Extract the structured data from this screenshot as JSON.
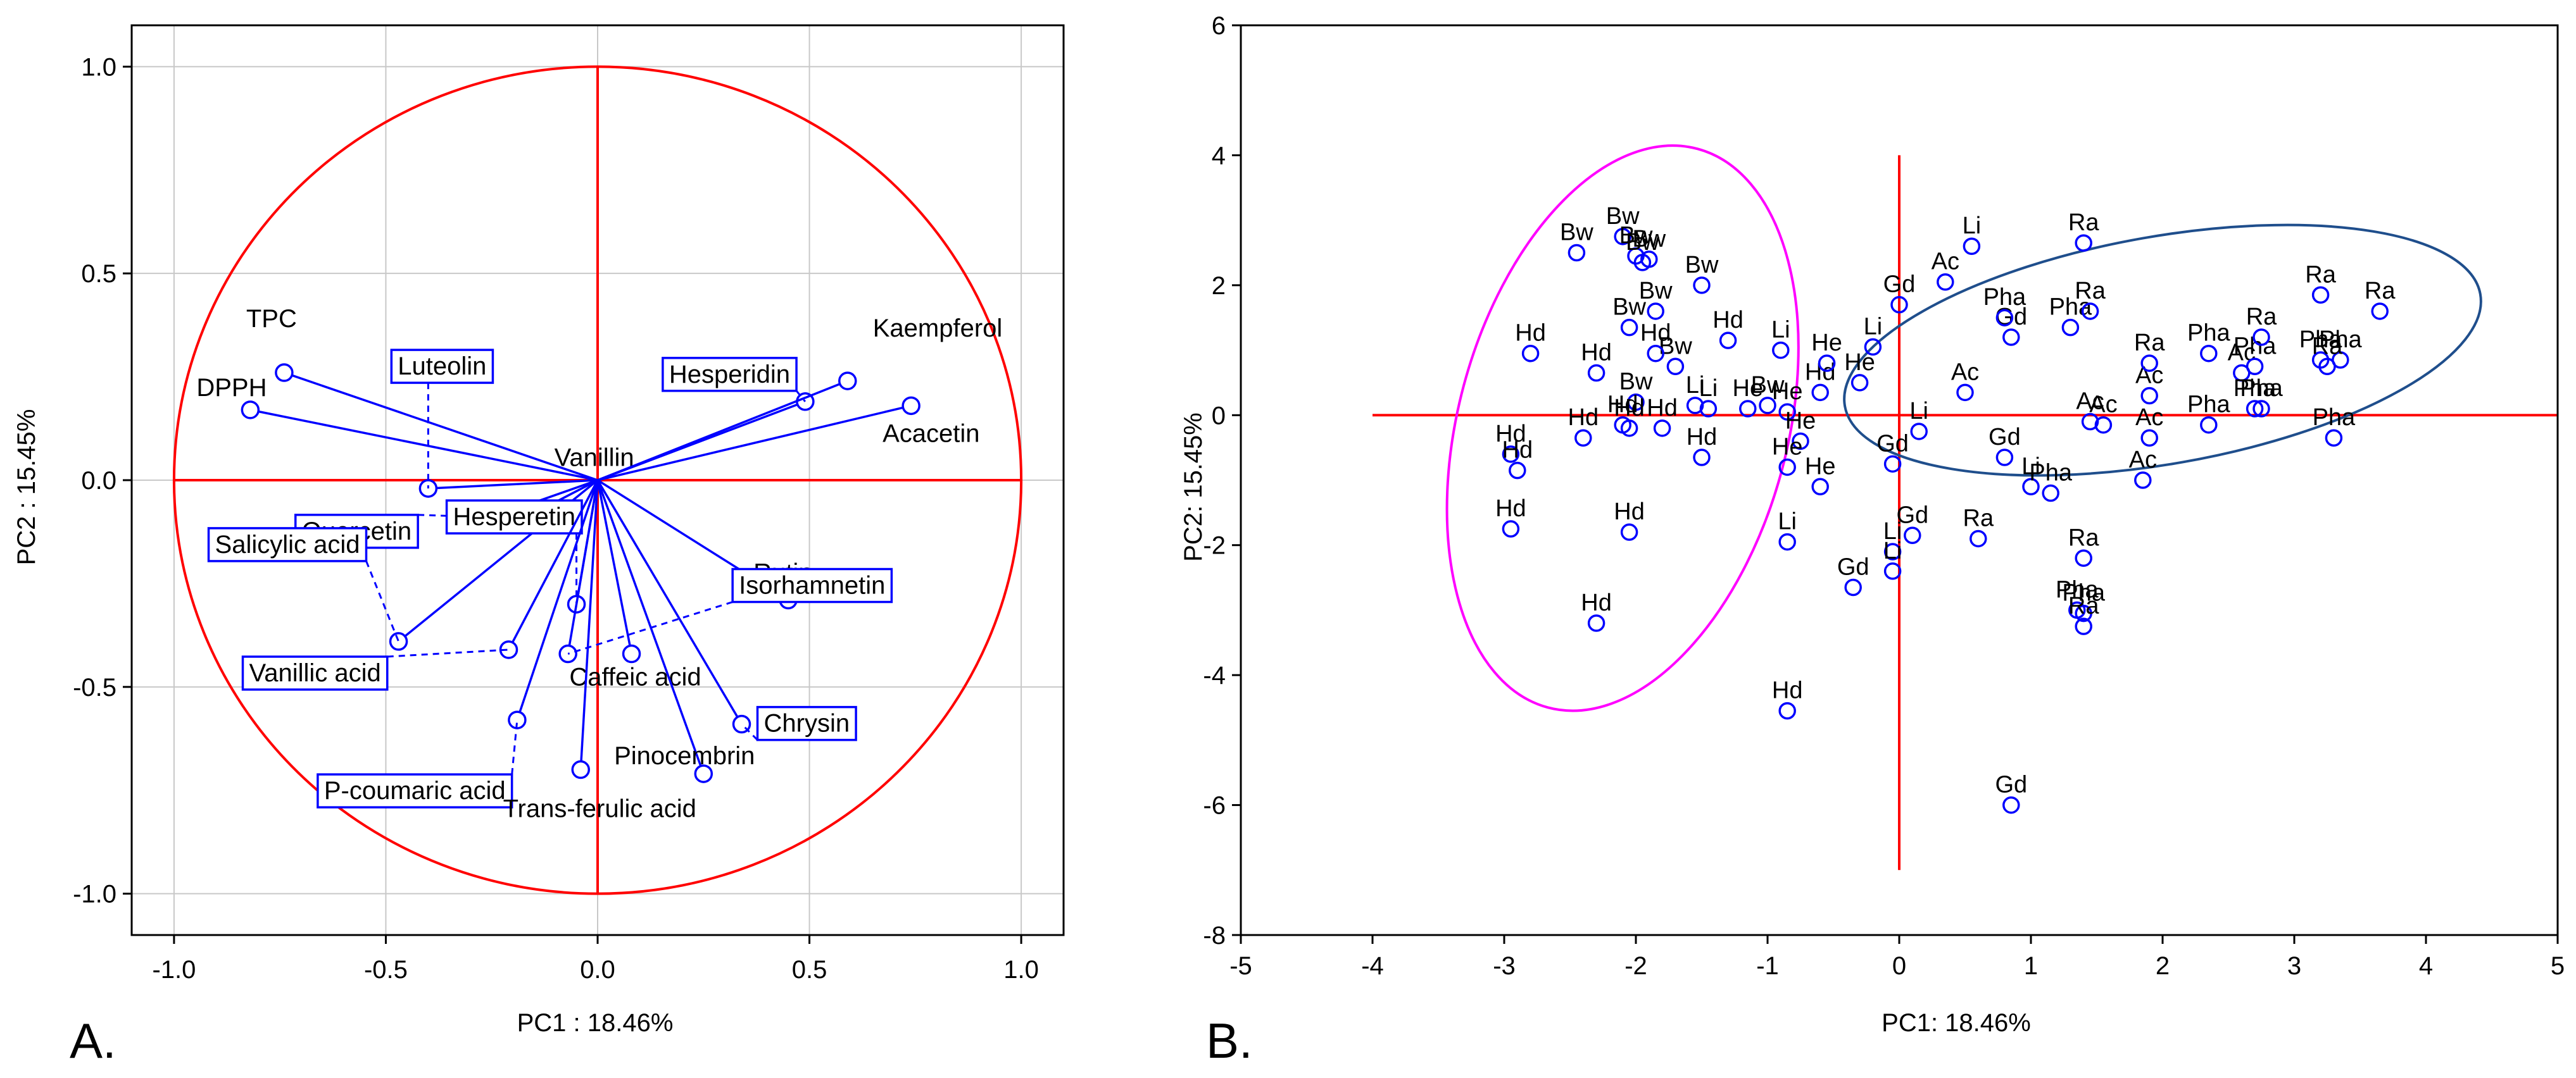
{
  "colors": {
    "axis": "#000000",
    "grid": "#c8c8c8",
    "red": "#ff0000",
    "blue": "#0000ff",
    "magenta": "#ff00ff",
    "navy": "#1f4e8c",
    "text": "#000000"
  },
  "chart_data": [
    {
      "type": "scatter",
      "panel_label": "A.",
      "xlabel": "PC1 : 18.46%",
      "ylabel": "PC2 : 15.45%",
      "xlim": [
        -1.1,
        1.1
      ],
      "ylim": [
        -1.1,
        1.1
      ],
      "xticks": [
        -1.0,
        -0.5,
        0.0,
        0.5,
        1.0
      ],
      "xtick_labels": [
        "-1.0",
        "-0.5",
        "0.0",
        "0.5",
        "1.0"
      ],
      "yticks": [
        -1.0,
        -0.5,
        0.0,
        0.5,
        1.0
      ],
      "ytick_labels": [
        "-1.0",
        "-0.5",
        "0.0",
        "0.5",
        "1.0"
      ],
      "grid": true,
      "circle_radius": 1.0,
      "loadings": [
        {
          "name": "TPC",
          "x": -0.74,
          "y": 0.26,
          "boxed": false
        },
        {
          "name": "DPPH",
          "x": -0.82,
          "y": 0.17,
          "boxed": false
        },
        {
          "name": "Luteolin",
          "x": -0.4,
          "y": -0.02,
          "boxed": true
        },
        {
          "name": "Vanillin",
          "x": -0.15,
          "y": -0.08,
          "boxed": false
        },
        {
          "name": "Quercetin",
          "x": -0.25,
          "y": -0.09,
          "boxed": true
        },
        {
          "name": "Salicylic acid",
          "x": -0.47,
          "y": -0.39,
          "boxed": true
        },
        {
          "name": "Hesperetin",
          "x": -0.05,
          "y": -0.3,
          "boxed": true
        },
        {
          "name": "Vanillic acid",
          "x": -0.21,
          "y": -0.41,
          "boxed": true
        },
        {
          "name": "P-coumaric acid",
          "x": -0.19,
          "y": -0.58,
          "boxed": true
        },
        {
          "name": "Caffeic acid",
          "x": 0.08,
          "y": -0.42,
          "boxed": false
        },
        {
          "name": "Trans-ferulic acid",
          "x": -0.04,
          "y": -0.7,
          "boxed": false
        },
        {
          "name": "Pinocembrin",
          "x": 0.25,
          "y": -0.71,
          "boxed": false
        },
        {
          "name": "Chrysin",
          "x": 0.34,
          "y": -0.59,
          "boxed": true
        },
        {
          "name": "Rutin",
          "x": 0.45,
          "y": -0.29,
          "boxed": false
        },
        {
          "name": "Isorhamnetin",
          "x": -0.07,
          "y": -0.42,
          "boxed": true
        },
        {
          "name": "Hesperidin",
          "x": 0.49,
          "y": 0.19,
          "boxed": true
        },
        {
          "name": "Kaempferol",
          "x": 0.59,
          "y": 0.24,
          "boxed": false
        },
        {
          "name": "Acacetin",
          "x": 0.74,
          "y": 0.18,
          "boxed": false
        }
      ]
    },
    {
      "type": "scatter",
      "panel_label": "B.",
      "xlabel": "PC1: 18.46%",
      "ylabel": "PC2: 15.45%",
      "xlim": [
        -5,
        5
      ],
      "ylim": [
        -8,
        6
      ],
      "xticks": [
        -5,
        -4,
        -3,
        -2,
        -1,
        0,
        1,
        2,
        3,
        4,
        5
      ],
      "xtick_labels": [
        "-5",
        "-4",
        "-3",
        "-2",
        "-1",
        "0",
        "1",
        "2",
        "3",
        "4",
        "5"
      ],
      "yticks": [
        -8,
        -6,
        -4,
        -2,
        0,
        2,
        4,
        6
      ],
      "ytick_labels": [
        "-8",
        "-6",
        "-4",
        "-2",
        "0",
        "2",
        "4",
        "6"
      ],
      "grid": false,
      "reference_lines": {
        "hline": {
          "y": 0,
          "x": [
            -4,
            5
          ]
        },
        "vline": {
          "x": 0,
          "y": [
            -7,
            4
          ]
        }
      },
      "ellipses": [
        {
          "group": "left",
          "cx": -2.1,
          "cy": -0.2,
          "rx": 1.25,
          "ry": 4.45,
          "rotation_deg": 15,
          "color": "magenta"
        },
        {
          "group": "right",
          "cx": 2.0,
          "cy": 1.0,
          "rx": 2.45,
          "ry": 1.75,
          "rotation_deg": -10,
          "color": "navy"
        }
      ],
      "points": [
        {
          "label": "Bw",
          "x": -2.45,
          "y": 2.5
        },
        {
          "label": "Bw",
          "x": -2.1,
          "y": 2.75
        },
        {
          "label": "Bw",
          "x": -2.0,
          "y": 2.45
        },
        {
          "label": "Bw",
          "x": -1.95,
          "y": 2.35
        },
        {
          "label": "Bw",
          "x": -1.9,
          "y": 2.4
        },
        {
          "label": "Bw",
          "x": -1.5,
          "y": 2.0
        },
        {
          "label": "Bw",
          "x": -1.85,
          "y": 1.6
        },
        {
          "label": "Bw",
          "x": -2.05,
          "y": 1.35
        },
        {
          "label": "Bw",
          "x": -1.7,
          "y": 0.75
        },
        {
          "label": "Bw",
          "x": -2.0,
          "y": 0.2
        },
        {
          "label": "Bw",
          "x": -1.0,
          "y": 0.15
        },
        {
          "label": "Hd",
          "x": -2.8,
          "y": 0.95
        },
        {
          "label": "Hd",
          "x": -2.3,
          "y": 0.65
        },
        {
          "label": "Hd",
          "x": -1.85,
          "y": 0.95
        },
        {
          "label": "Hd",
          "x": -1.3,
          "y": 1.15
        },
        {
          "label": "Hd",
          "x": -2.4,
          "y": -0.35
        },
        {
          "label": "Hd",
          "x": -2.1,
          "y": -0.15
        },
        {
          "label": "Hd",
          "x": -2.05,
          "y": -0.2
        },
        {
          "label": "Hd",
          "x": -1.8,
          "y": -0.2
        },
        {
          "label": "Hd",
          "x": -1.5,
          "y": -0.65
        },
        {
          "label": "Hd",
          "x": -2.95,
          "y": -0.6
        },
        {
          "label": "Hd",
          "x": -2.9,
          "y": -0.85
        },
        {
          "label": "Hd",
          "x": -2.95,
          "y": -1.75
        },
        {
          "label": "Hd",
          "x": -2.05,
          "y": -1.8
        },
        {
          "label": "Hd",
          "x": -2.3,
          "y": -3.2
        },
        {
          "label": "Hd",
          "x": -0.85,
          "y": -4.55
        },
        {
          "label": "Hd",
          "x": -0.6,
          "y": 0.35
        },
        {
          "label": "Li",
          "x": -1.55,
          "y": 0.15
        },
        {
          "label": "Li",
          "x": -1.45,
          "y": 0.1
        },
        {
          "label": "Li",
          "x": -0.9,
          "y": 1.0
        },
        {
          "label": "Li",
          "x": -0.2,
          "y": 1.05
        },
        {
          "label": "Li",
          "x": 0.55,
          "y": 2.6
        },
        {
          "label": "Li",
          "x": 0.15,
          "y": -0.25
        },
        {
          "label": "Li",
          "x": 1.0,
          "y": -1.1
        },
        {
          "label": "Li",
          "x": -0.85,
          "y": -1.95
        },
        {
          "label": "Li",
          "x": -0.05,
          "y": -2.1
        },
        {
          "label": "Li",
          "x": -0.05,
          "y": -2.4
        },
        {
          "label": "He",
          "x": -1.15,
          "y": 0.1
        },
        {
          "label": "He",
          "x": -0.85,
          "y": 0.05
        },
        {
          "label": "He",
          "x": -0.55,
          "y": 0.8
        },
        {
          "label": "He",
          "x": -0.3,
          "y": 0.5
        },
        {
          "label": "He",
          "x": -0.75,
          "y": -0.4
        },
        {
          "label": "He",
          "x": -0.85,
          "y": -0.8
        },
        {
          "label": "He",
          "x": -0.6,
          "y": -1.1
        },
        {
          "label": "Gd",
          "x": 0.0,
          "y": 1.7
        },
        {
          "label": "Gd",
          "x": 0.85,
          "y": 1.2
        },
        {
          "label": "Gd",
          "x": -0.05,
          "y": -0.75
        },
        {
          "label": "Gd",
          "x": 0.8,
          "y": -0.65
        },
        {
          "label": "Gd",
          "x": 0.1,
          "y": -1.85
        },
        {
          "label": "Gd",
          "x": -0.35,
          "y": -2.65
        },
        {
          "label": "Gd",
          "x": 0.85,
          "y": -6.0
        },
        {
          "label": "Ac",
          "x": 0.35,
          "y": 2.05
        },
        {
          "label": "Ac",
          "x": 0.5,
          "y": 0.35
        },
        {
          "label": "Ac",
          "x": 1.45,
          "y": -0.1
        },
        {
          "label": "Ac",
          "x": 1.55,
          "y": -0.15
        },
        {
          "label": "Ac",
          "x": 1.9,
          "y": 0.3
        },
        {
          "label": "Ac",
          "x": 1.9,
          "y": -0.35
        },
        {
          "label": "Ac",
          "x": 1.85,
          "y": -1.0
        },
        {
          "label": "Ac",
          "x": 2.6,
          "y": 0.65
        },
        {
          "label": "Pha",
          "x": 0.8,
          "y": 1.5
        },
        {
          "label": "Pha",
          "x": 1.3,
          "y": 1.35
        },
        {
          "label": "Pha",
          "x": 2.35,
          "y": 0.95
        },
        {
          "label": "Pha",
          "x": 2.7,
          "y": 0.75
        },
        {
          "label": "Pha",
          "x": 2.35,
          "y": -0.15
        },
        {
          "label": "Pha",
          "x": 2.75,
          "y": 0.1
        },
        {
          "label": "Pha",
          "x": 2.7,
          "y": 0.1
        },
        {
          "label": "Pha",
          "x": 3.2,
          "y": 0.85
        },
        {
          "label": "Pha",
          "x": 3.35,
          "y": 0.85
        },
        {
          "label": "Pha",
          "x": 3.3,
          "y": -0.35
        },
        {
          "label": "Pha",
          "x": 1.15,
          "y": -1.2
        },
        {
          "label": "Pha",
          "x": 1.35,
          "y": -3.0
        },
        {
          "label": "Pha",
          "x": 1.4,
          "y": -3.05
        },
        {
          "label": "Ra",
          "x": 1.4,
          "y": 2.65
        },
        {
          "label": "Ra",
          "x": 1.45,
          "y": 1.6
        },
        {
          "label": "Ra",
          "x": 1.9,
          "y": 0.8
        },
        {
          "label": "Ra",
          "x": 2.75,
          "y": 1.2
        },
        {
          "label": "Ra",
          "x": 3.2,
          "y": 1.85
        },
        {
          "label": "Ra",
          "x": 3.65,
          "y": 1.6
        },
        {
          "label": "Ra",
          "x": 3.25,
          "y": 0.75
        },
        {
          "label": "Ra",
          "x": 0.6,
          "y": -1.9
        },
        {
          "label": "Ra",
          "x": 1.4,
          "y": -2.2
        },
        {
          "label": "Ra",
          "x": 1.4,
          "y": -3.25
        }
      ]
    }
  ]
}
